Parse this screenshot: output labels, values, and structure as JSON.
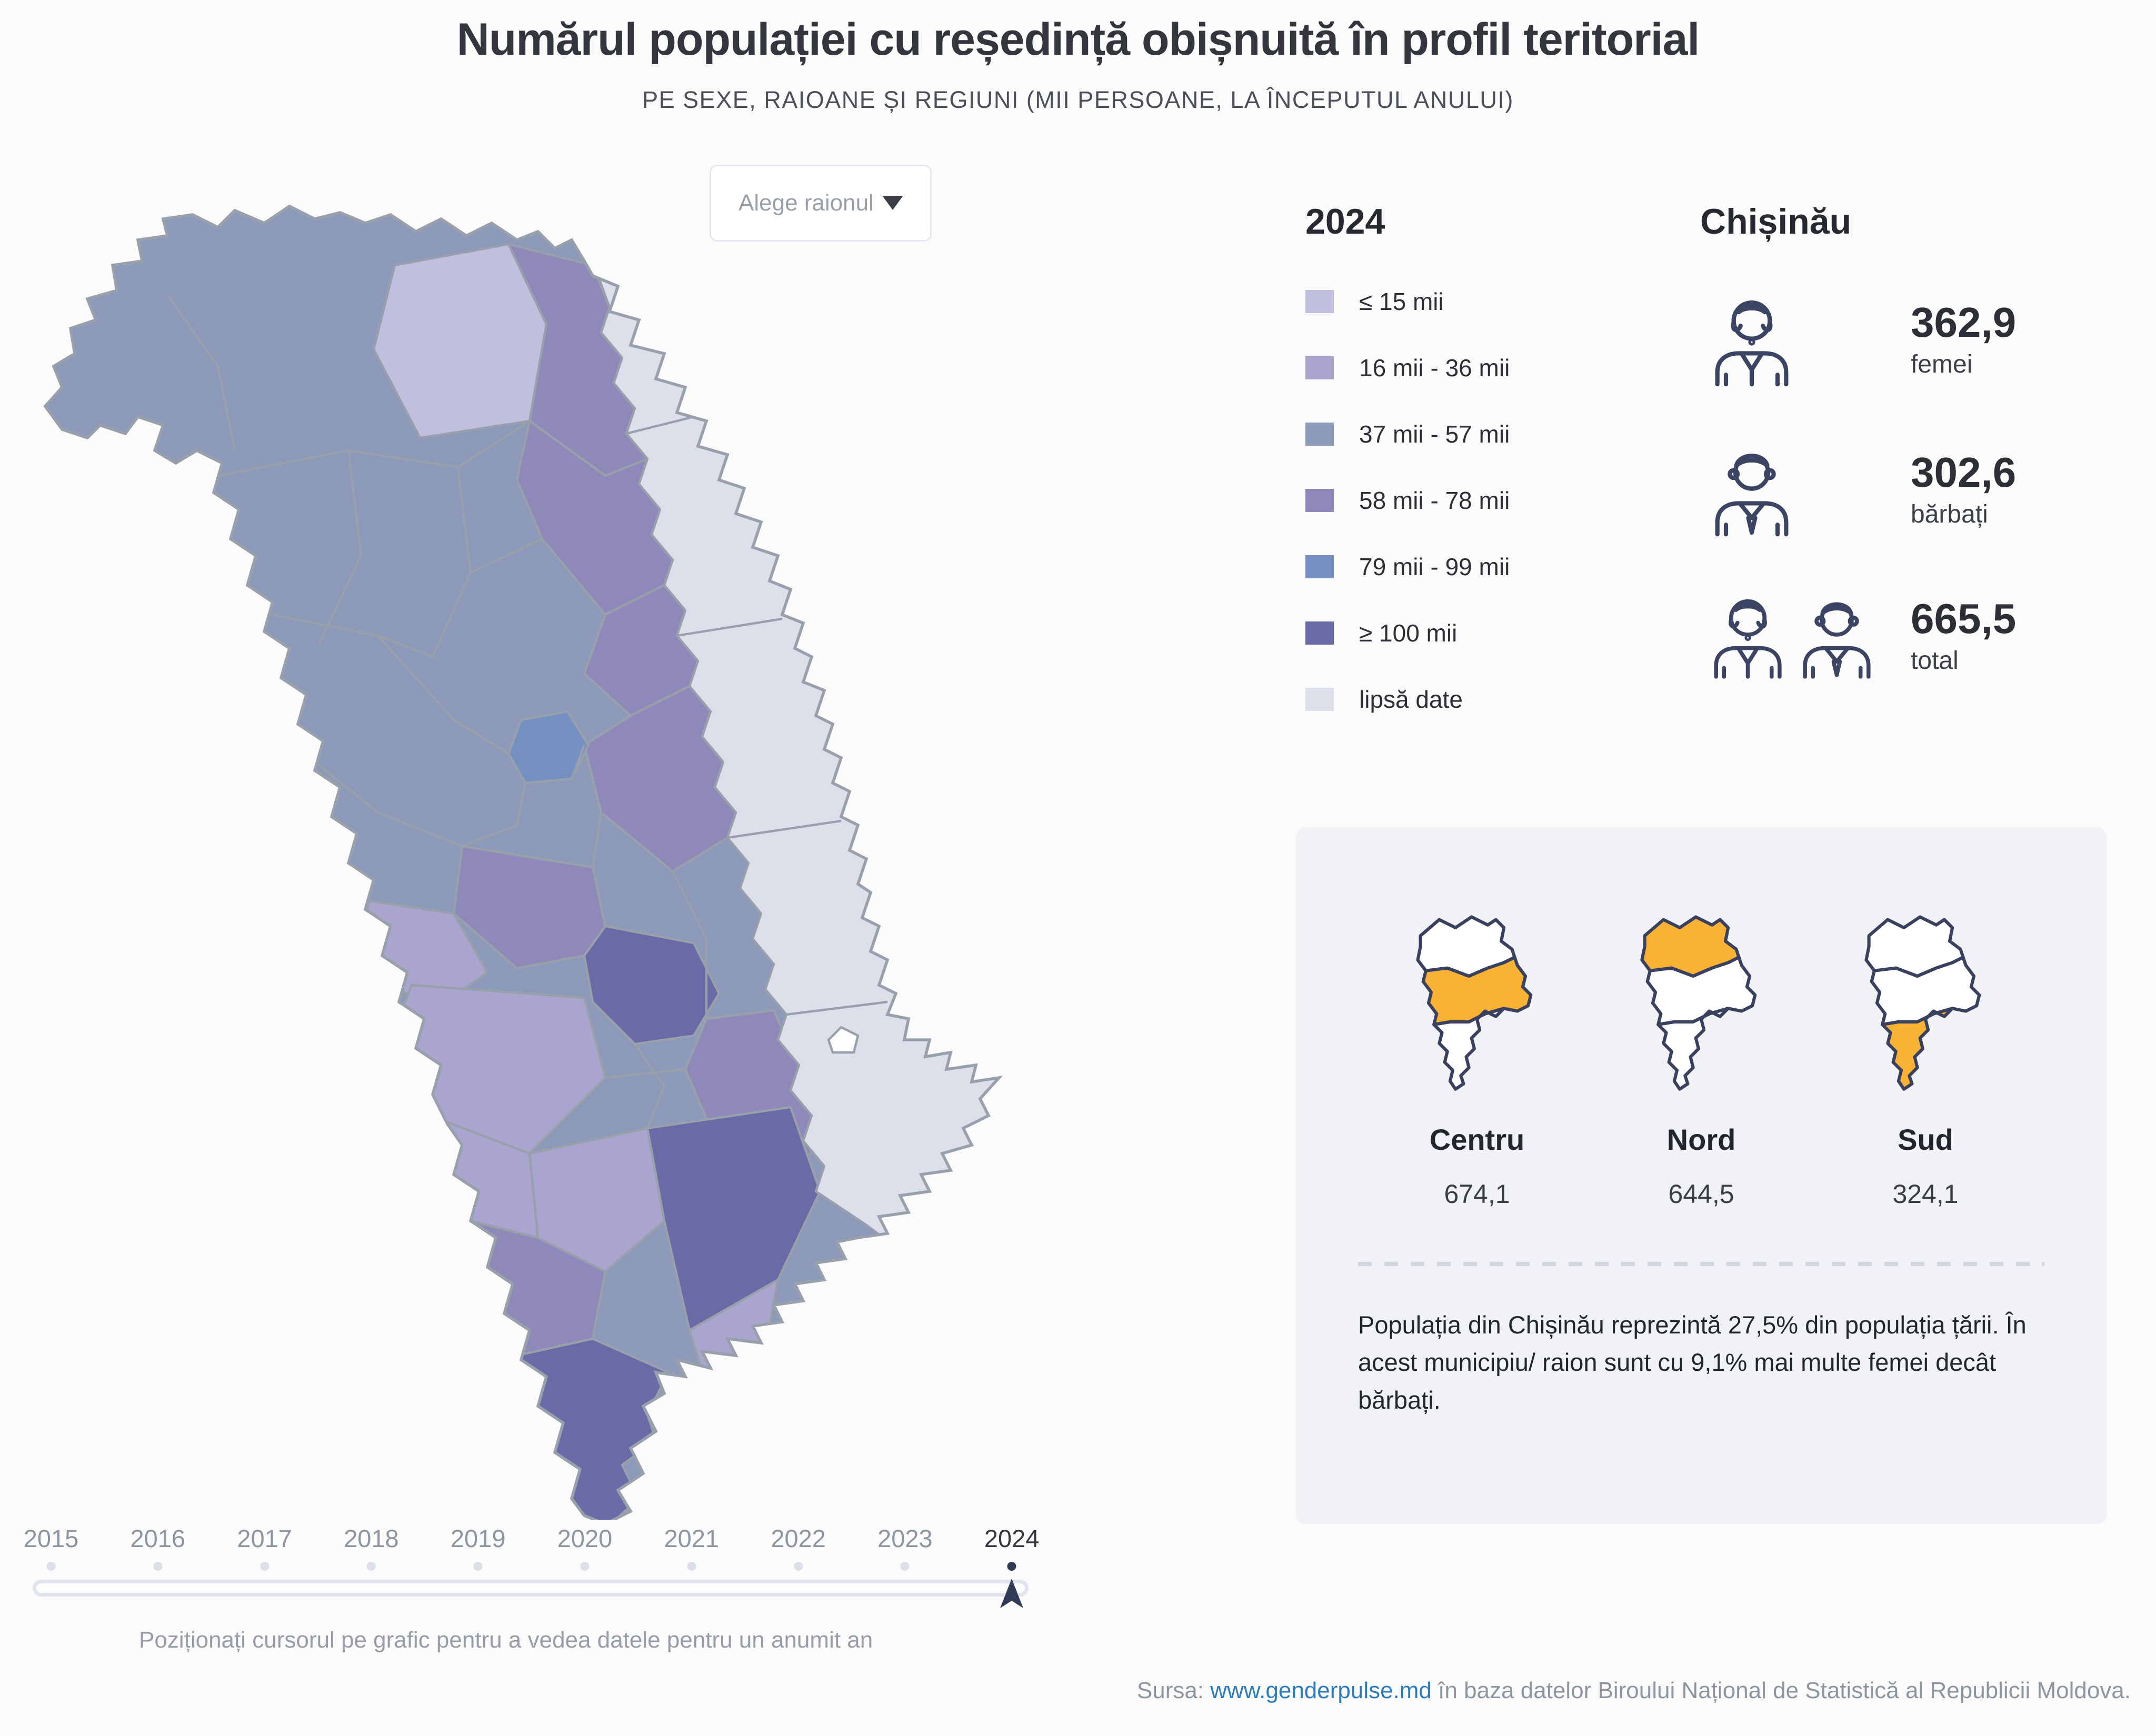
{
  "header": {
    "title": "Numărul populației cu reședință obișnuită în profil teritorial",
    "subtitle": "PE SEXE, RAIOANE ȘI REGIUNI (MII PERSOANE, LA ÎNCEPUTUL ANULUI)"
  },
  "controls": {
    "district_select": {
      "placeholder": "Alege raionul"
    }
  },
  "legend": {
    "year": "2024",
    "items": [
      {
        "key": "le15",
        "label": "≤ 15 mii",
        "color": "#c1bfe0"
      },
      {
        "key": "b16_36",
        "label": "16 mii - 36 mii",
        "color": "#a9a5ce"
      },
      {
        "key": "b37_57",
        "label": "37 mii - 57 mii",
        "color": "#8d99b9"
      },
      {
        "key": "b58_78",
        "label": "58 mii - 78 mii",
        "color": "#8e89b9"
      },
      {
        "key": "b79_99",
        "label": "79 mii - 99 mii",
        "color": "#7591c2"
      },
      {
        "key": "ge100",
        "label": "≥ 100 mii",
        "color": "#6a6ba6"
      },
      {
        "key": "nodata",
        "label": "lipsă date",
        "color": "#dde0eb"
      }
    ]
  },
  "selected_unit": {
    "name": "Chișinău",
    "stats": [
      {
        "value": "362,9",
        "label": "femei"
      },
      {
        "value": "302,6",
        "label": "bărbați"
      },
      {
        "value": "665,5",
        "label": "total"
      }
    ]
  },
  "regions": {
    "highlight_color": "#f9b234",
    "items": [
      {
        "key": "centru",
        "name": "Centru",
        "value": "674,1"
      },
      {
        "key": "nord",
        "name": "Nord",
        "value": "644,5"
      },
      {
        "key": "sud",
        "name": "Sud",
        "value": "324,1"
      }
    ],
    "note": "Populația din Chișinău reprezintă 27,5% din populația țării. În acest municipiu/ raion sunt cu 9,1% mai multe femei decât bărbați."
  },
  "timeline": {
    "years": [
      "2015",
      "2016",
      "2017",
      "2018",
      "2019",
      "2020",
      "2021",
      "2022",
      "2023",
      "2024"
    ],
    "selected": "2024",
    "hint": "Poziționați cursorul pe grafic pentru a vedea datele pentru un anumit an"
  },
  "footer": {
    "prefix": "Sursa: ",
    "link": "www.genderpulse.md",
    "suffix": " în baza datelor Biroului Național de Statistică al Republicii Moldova."
  },
  "chart_data": {
    "type": "heatmap",
    "subtype": "choropleth-map",
    "title": "Numărul populației cu reședință obișnuită în profil teritorial",
    "subtitle": "Pe sexe, raioane și regiuni (mii persoane, la începutul anului)",
    "unit": "mii persoane",
    "year": 2024,
    "legend_bins": [
      "≤ 15 mii",
      "16 mii - 36 mii",
      "37 mii - 57 mii",
      "58 mii - 78 mii",
      "79 mii - 99 mii",
      "≥ 100 mii",
      "lipsă date"
    ],
    "selected_unit": {
      "name": "Chișinău",
      "femei": 362.9,
      "barbati": 302.6,
      "total": 665.5
    },
    "regions": [
      {
        "name": "Centru",
        "total": 674.1
      },
      {
        "name": "Nord",
        "total": 644.5
      },
      {
        "name": "Sud",
        "total": 324.1
      }
    ],
    "timeline_years": [
      2015,
      2016,
      2017,
      2018,
      2019,
      2020,
      2021,
      2022,
      2023,
      2024
    ],
    "selected_year": 2024,
    "note": "Populația din Chișinău reprezintă 27,5% din populația țării. În acest municipiu/ raion sunt cu 9,1% mai multe femei decât bărbați."
  }
}
